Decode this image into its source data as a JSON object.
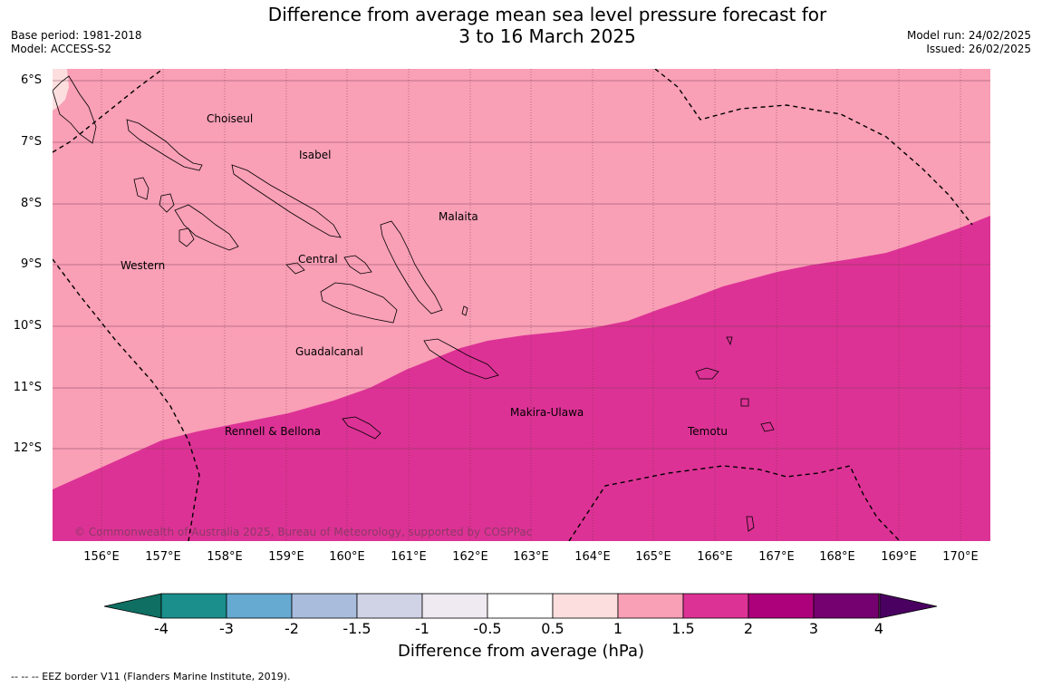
{
  "title_line1": "Difference from average mean sea level pressure forecast for",
  "title_line2": "3 to 16 March 2025",
  "meta_left": {
    "base_period": "Base period: 1981-2018",
    "model": "Model: ACCESS-S2"
  },
  "meta_right": {
    "model_run": "Model run: 24/02/2025",
    "issued": "Issued: 26/02/2025"
  },
  "lat_labels": [
    "6°S",
    "7°S",
    "8°S",
    "9°S",
    "10°S",
    "11°S",
    "12°S"
  ],
  "lon_labels": [
    "156°E",
    "157°E",
    "158°E",
    "159°E",
    "160°E",
    "161°E",
    "162°E",
    "163°E",
    "164°E",
    "165°E",
    "166°E",
    "167°E",
    "168°E",
    "169°E",
    "170°E"
  ],
  "regions": {
    "choiseul": "Choiseul",
    "isabel": "Isabel",
    "malaita": "Malaita",
    "western": "Western",
    "central": "Central",
    "guadalcanal": "Guadalcanal",
    "makira": "Makira-Ulawa",
    "rennell": "Rennell & Bellona",
    "temotu": "Temotu"
  },
  "copyright": "© Commonwealth of Australia 2025, Bureau of Meteorology, supported by COSPPac",
  "colorbar": {
    "labels": [
      "-4",
      "-3",
      "-2",
      "-1.5",
      "-1",
      "-0.5",
      "0.5",
      "1",
      "1.5",
      "2",
      "3",
      "4"
    ],
    "colors": [
      "#1a8f8c",
      "#66a9d1",
      "#a9bcdc",
      "#d0d2e6",
      "#efeaf1",
      "#ffffff",
      "#fddede",
      "#f99fb6",
      "#dc3295",
      "#ad007b",
      "#75006f"
    ],
    "under_color": "#0e6f62",
    "over_color": "#4a0060",
    "title": "Difference from average (hPa)"
  },
  "map_colors": {
    "band_0_5_1": "#fddede",
    "band_1_1_5": "#f99fb6",
    "band_1_5_2": "#dc3295"
  },
  "footnote": "--  --  -- EEZ border V11 (Flanders Marine Institute, 2019)."
}
